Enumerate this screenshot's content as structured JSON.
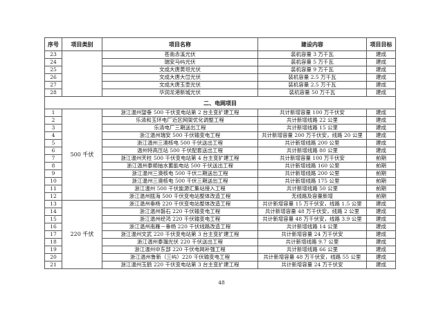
{
  "headers": [
    "序号",
    "项目类别",
    "项目名称",
    "建设内容",
    "项目目标"
  ],
  "group1": {
    "category": "",
    "rows": [
      [
        "23",
        "苍南赤溪光伏",
        "装机容量 3 万千瓦",
        "建成"
      ],
      [
        "24",
        "瑞安马屿光伏",
        "装机容量 5 万千瓦",
        "建成"
      ],
      [
        "25",
        "文成大唐黄坦光伏",
        "装机容量 9 万千瓦",
        "建成"
      ],
      [
        "26",
        "文成大唐大峃光伏",
        "装机容量 2.5 万千瓦",
        "建成"
      ],
      [
        "27",
        "文成大唐玉壶光伏",
        "装机容量 2.5 万千瓦",
        "建成"
      ],
      [
        "28",
        "华润龙港新城光伏",
        "装机容量 50 万千瓦",
        "建成"
      ]
    ]
  },
  "section_title": "二、电网项目",
  "group2": {
    "category": "500 千伏",
    "rows": [
      [
        "1",
        "浙江温州望垂 500 千伏变电站第 2 台主变扩建工程",
        "共计新增容量 100 万千伏安",
        "建成"
      ],
      [
        "2",
        "乐清和玉环电厂近区网架优化调整工程",
        "共计新增线路 22 公里",
        "建成"
      ],
      [
        "3",
        "乐清电厂三期送出工程",
        "共计新增线路 15 公里",
        "建成"
      ],
      [
        "4",
        "浙江温州瑞安 500 千伏输变电工程",
        "共计新增容量 200 万千伏安，线路 20 公里",
        "建成"
      ],
      [
        "5",
        "浙江温州三澳核电 500 千伏送出工程",
        "共计新增线路 200 公里",
        "建成"
      ],
      [
        "6",
        "温州特高压站 500 千伏配套送出工程",
        "共计新增线路 80 公里",
        "建成"
      ],
      [
        "7",
        "浙江温州天柱 500 千伏变电站第 4 台主变扩建工程",
        "共计新增容量 100 万千伏安",
        "前期"
      ],
      [
        "8",
        "浙江温州泰顺抽水蓄能电站 500 千伏送出工程",
        "共计新增线路 160 公里",
        "前期"
      ],
      [
        "9",
        "浙江温州三澳核电 500 千伏二期送出工程",
        "共计新增线路 200 公里",
        "前期"
      ],
      [
        "10",
        "浙江温州三澳核电 500 千伏三期送出工程",
        "共计新增线路 175 公里",
        "前期"
      ],
      [
        "11",
        "浙江温州 500 千伏能源汇集站接入工程",
        "共计新增线路 50 公里",
        "前期"
      ],
      [
        "12",
        "浙江温州瓯海 500 千伏变电站整体改造工程",
        "无线路及容量新增",
        "前期"
      ]
    ]
  },
  "group3": {
    "category": "220 千伏",
    "rows": [
      [
        "13",
        "浙江温州垂杨 220 千伏变电站整体改造工程",
        "共计新增容量 15 万千伏安，线路 1.5 公里",
        "建成"
      ],
      [
        "14",
        "浙江温州磐石 220 千伏输变电工程",
        "共计新增容量 48 万千伏安，线路 2 公里",
        "建成"
      ],
      [
        "15",
        "浙江温州经鸿 220 千伏输变电工程",
        "共计新增容量 48 万千伏安，线路 3.9 公里",
        "建成"
      ],
      [
        "16",
        "浙江温州南雁－垂杨 220 千伏线路改造工程",
        "共计新增线路 14 公里",
        "建成"
      ],
      [
        "17",
        "浙江温州文武 220 千伏变电站第 3 台主变扩建工程",
        "共计新增容量 24 万千伏安",
        "建成"
      ],
      [
        "18",
        "浙江温州泰瀚光伏 220 千伏送出工程",
        "共计新增线路 9.7 公里",
        "建成"
      ],
      [
        "19",
        "浙江温州中东部 220 千伏电网补强工程",
        "共计新增线路 66 公里",
        "建成"
      ],
      [
        "20",
        "浙江温州鲁新（三屿）220 千伏输变电工程",
        "共计新增容量 48 万千伏安，线路 55 公里",
        "建成"
      ],
      [
        "21",
        "浙江温州玉鹤 220 千伏变电站第 3 台主变扩建工程",
        "共计新增容量 24 万千伏安",
        "建成"
      ]
    ]
  },
  "page_number": "48"
}
